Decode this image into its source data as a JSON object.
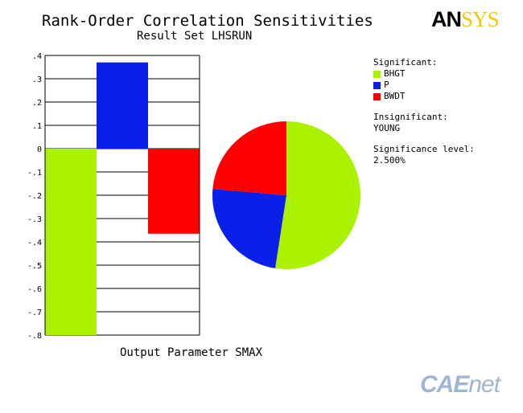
{
  "chart_data": {
    "type": "bar",
    "title": "Rank-Order Correlation Sensitivities",
    "subtitle": "Result Set LHSRUN",
    "xlabel": "Output Parameter SMAX",
    "ylim": [
      -0.8,
      0.4
    ],
    "y_ticks": [
      ".4",
      ".3",
      ".2",
      ".1",
      "0",
      "-.1",
      "-.2",
      "-.3",
      "-.4",
      "-.5",
      "-.6",
      "-.7",
      "-.8"
    ],
    "grid": true,
    "categories": [
      "BHGT",
      "P",
      "BWDT"
    ],
    "values": [
      -0.8,
      0.37,
      -0.365
    ],
    "colors": [
      "#aaf200",
      "#0a20e8",
      "#ff0000"
    ],
    "pie": {
      "slices": [
        {
          "label": "BHGT",
          "value": 0.519,
          "color": "#aaf200"
        },
        {
          "label": "P",
          "value": 0.237,
          "color": "#0a20e8"
        },
        {
          "label": "BWDT",
          "value": 0.234,
          "color": "#ff0000"
        }
      ]
    }
  },
  "legend": {
    "significant_label": "Significant:",
    "significant": [
      {
        "name": "BHGT",
        "color": "#aaf200"
      },
      {
        "name": "P",
        "color": "#0a20e8"
      },
      {
        "name": "BWDT",
        "color": "#ff0000"
      }
    ],
    "insignificant_label": "Insignificant:",
    "insignificant": [
      "YOUNG"
    ],
    "significance_label": "Significance level:",
    "significance_value": "2.500%"
  },
  "brand": {
    "part1": "AN",
    "part2": "SYS"
  },
  "watermark": {
    "part1": "CAE",
    "part2": "net"
  }
}
